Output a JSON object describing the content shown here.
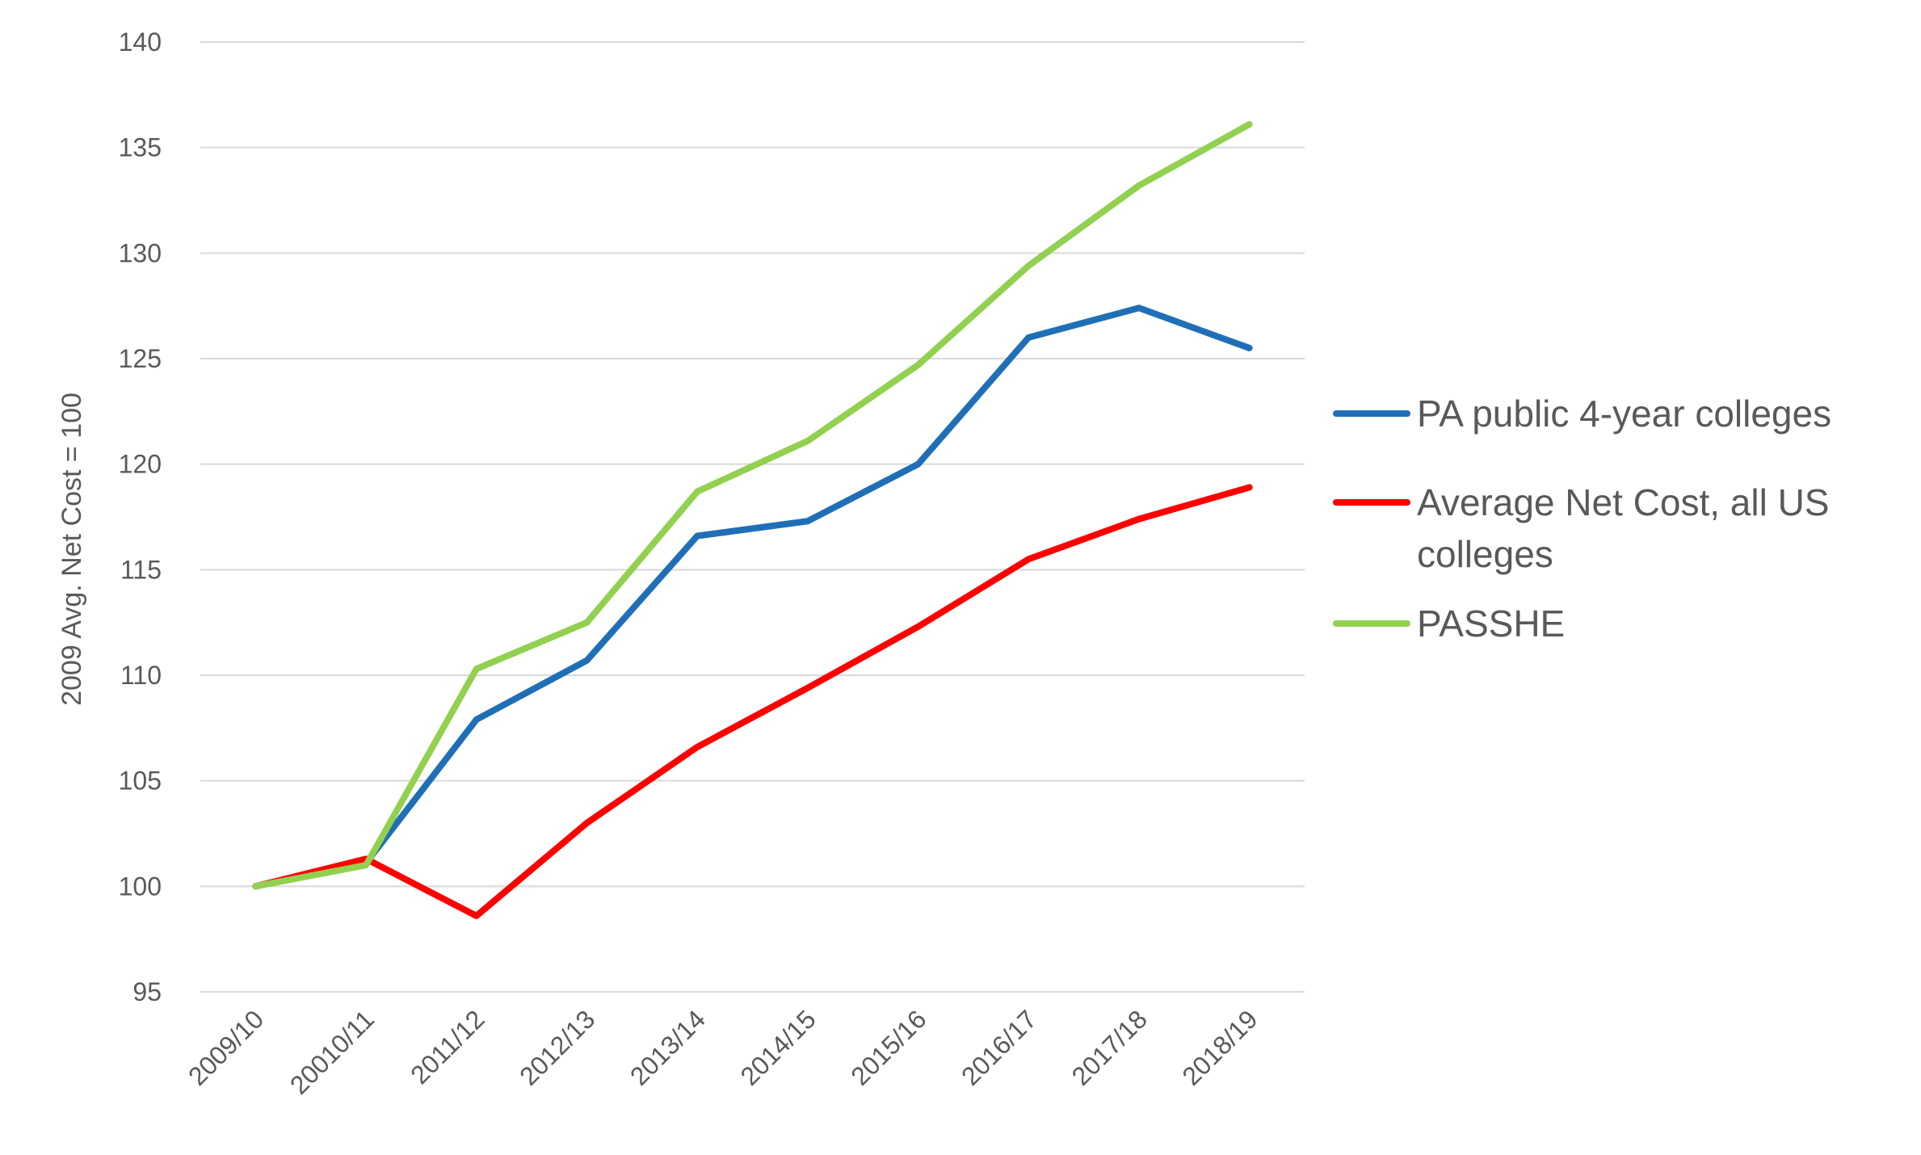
{
  "chart_data": {
    "type": "line",
    "title": "",
    "xlabel": "",
    "ylabel": "2009 Avg. Net Cost = 100",
    "ylim": [
      95,
      140
    ],
    "yticks": [
      "95",
      "100",
      "105",
      "110",
      "115",
      "120",
      "125",
      "130",
      "135",
      "140"
    ],
    "categories": [
      "2009/10",
      "20010/11",
      "2011/12",
      "2012/13",
      "2013/14",
      "2014/15",
      "2015/16",
      "2016/17",
      "2017/18",
      "2018/19"
    ],
    "grid": true,
    "legend_position": "right",
    "series": [
      {
        "name": "PA public 4-year colleges",
        "color": "#1f6fb7",
        "values": [
          100,
          101.1,
          107.9,
          110.7,
          116.6,
          117.3,
          120.0,
          126.0,
          127.4,
          125.5
        ]
      },
      {
        "name": "Average Net Cost, all US colleges",
        "color": "#ff0000",
        "values": [
          100,
          101.3,
          98.6,
          103.0,
          106.6,
          109.4,
          112.3,
          115.5,
          117.4,
          118.9
        ]
      },
      {
        "name": "PASSHE",
        "color": "#92d050",
        "values": [
          100,
          101.0,
          110.3,
          112.5,
          118.7,
          121.1,
          124.7,
          129.4,
          133.2,
          136.1
        ]
      }
    ]
  }
}
